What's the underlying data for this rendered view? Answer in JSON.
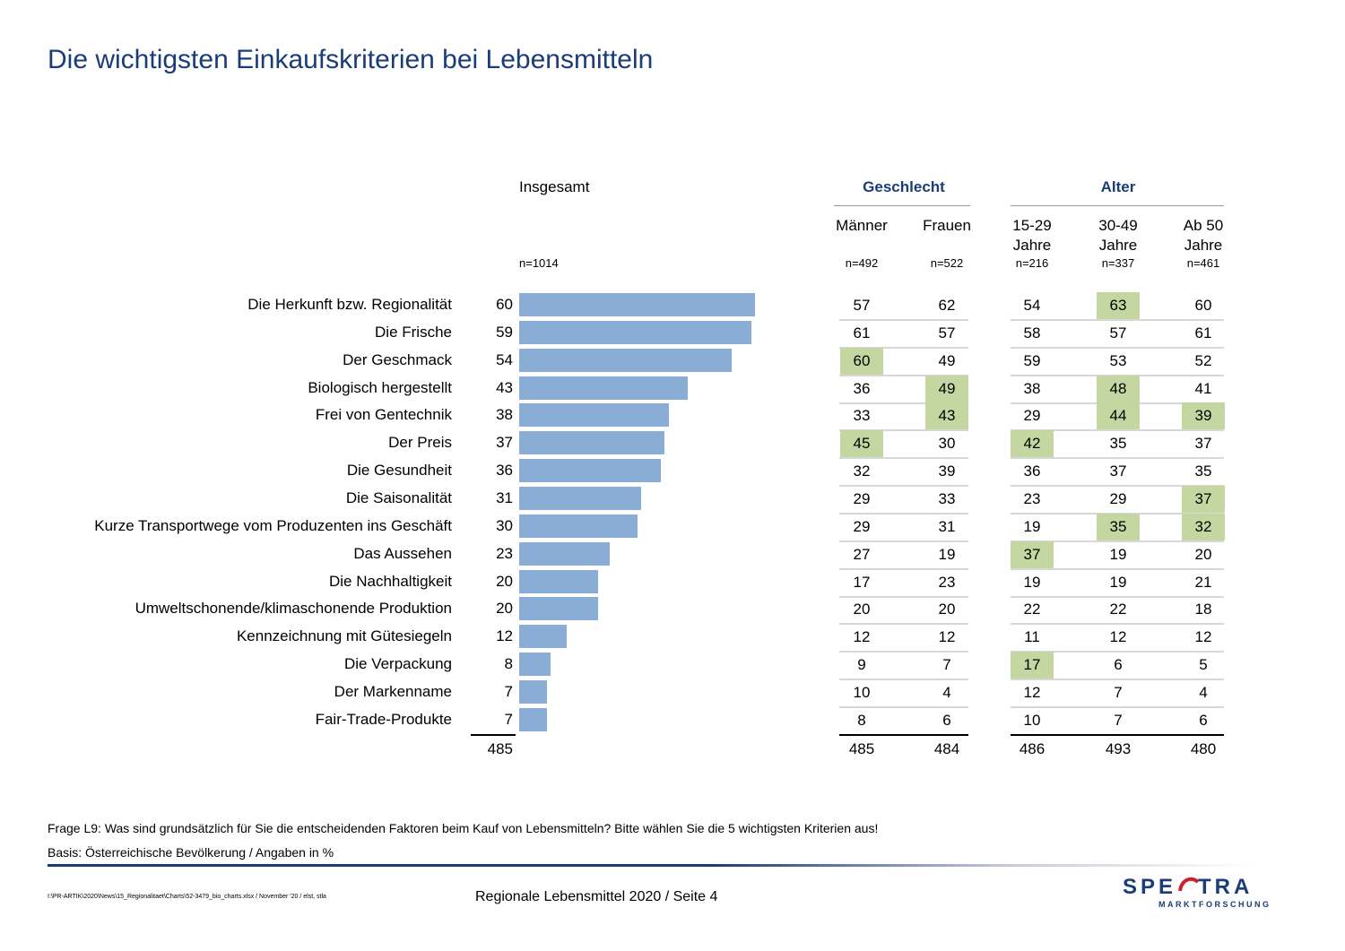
{
  "title": "Die wichtigsten Einkaufskriterien bei Lebensmitteln",
  "header": {
    "overall_label": "Insgesamt",
    "overall_n": "n=1014",
    "group_gender": "Geschlecht",
    "group_age": "Alter",
    "columns": [
      {
        "label_line1": "Männer",
        "label_line2": "",
        "n": "n=492"
      },
      {
        "label_line1": "Frauen",
        "label_line2": "",
        "n": "n=522"
      },
      {
        "label_line1": "15-29",
        "label_line2": "Jahre",
        "n": "n=216"
      },
      {
        "label_line1": "30-49",
        "label_line2": "Jahre",
        "n": "n=337"
      },
      {
        "label_line1": "Ab 50",
        "label_line2": "Jahre",
        "n": "n=461"
      }
    ]
  },
  "chart_data": {
    "type": "bar",
    "orientation": "horizontal",
    "categories": [
      "Die Herkunft bzw. Regionalität",
      "Die Frische",
      "Der Geschmack",
      "Biologisch hergestellt",
      "Frei von Gentechnik",
      "Der Preis",
      "Die Gesundheit",
      "Die Saisonalität",
      "Kurze Transportwege vom Produzenten ins Geschäft",
      "Das Aussehen",
      "Die Nachhaltigkeit",
      "Umweltschonende/klimaschonende Produktion",
      "Kennzeichnung mit Gütesiegeln",
      "Die Verpackung",
      "Der Markenname",
      "Fair-Trade-Produkte"
    ],
    "values": [
      60,
      59,
      54,
      43,
      38,
      37,
      36,
      31,
      30,
      23,
      20,
      20,
      12,
      8,
      7,
      7
    ],
    "bar_color": "#8aadd6",
    "xlim": [
      0,
      100
    ],
    "table": {
      "columns": [
        "Männer",
        "Frauen",
        "15-29 Jahre",
        "30-49 Jahre",
        "Ab 50 Jahre"
      ],
      "rows": [
        [
          57,
          62,
          54,
          63,
          60
        ],
        [
          61,
          57,
          58,
          57,
          61
        ],
        [
          60,
          49,
          59,
          53,
          52
        ],
        [
          36,
          49,
          38,
          48,
          41
        ],
        [
          33,
          43,
          29,
          44,
          39
        ],
        [
          45,
          30,
          42,
          35,
          37
        ],
        [
          32,
          39,
          36,
          37,
          35
        ],
        [
          29,
          33,
          23,
          29,
          37
        ],
        [
          29,
          31,
          19,
          35,
          32
        ],
        [
          27,
          19,
          37,
          19,
          20
        ],
        [
          17,
          23,
          19,
          19,
          21
        ],
        [
          20,
          20,
          22,
          22,
          18
        ],
        [
          12,
          12,
          11,
          12,
          12
        ],
        [
          9,
          7,
          17,
          6,
          5
        ],
        [
          10,
          4,
          12,
          7,
          4
        ],
        [
          8,
          6,
          10,
          7,
          6
        ]
      ],
      "highlighted": [
        [
          0,
          3
        ],
        [
          2,
          0
        ],
        [
          3,
          1
        ],
        [
          3,
          3
        ],
        [
          4,
          1
        ],
        [
          4,
          3
        ],
        [
          4,
          4
        ],
        [
          5,
          0
        ],
        [
          5,
          2
        ],
        [
          7,
          4
        ],
        [
          8,
          3
        ],
        [
          8,
          4
        ],
        [
          9,
          2
        ],
        [
          13,
          2
        ]
      ],
      "highlight_color": "#c4d7a0",
      "totals": [
        485,
        484,
        486,
        493,
        480
      ]
    },
    "overall_total": 485
  },
  "footnotes": {
    "question": "Frage L9: Was sind grundsätzlich für Sie die entscheidenden Faktoren beim Kauf von Lebensmitteln? Bitte wählen Sie die 5 wichtigsten Kriterien aus!",
    "basis": "Basis: Österreichische Bevölkerung / Angaben in %"
  },
  "footer": {
    "file_path": "I:\\PR-ARTIK\\2020\\News\\15_Regionalitaet\\Charts\\52-3479_bio_charts.xlsx / November '20 / elst, stla",
    "page_label": "Regionale Lebensmittel 2020  /  Seite  4"
  },
  "logo": {
    "name": "SPECTRA",
    "subtitle": "MARKTFORSCHUNG",
    "color": "#1a3c78",
    "accent": "#d0202a"
  }
}
